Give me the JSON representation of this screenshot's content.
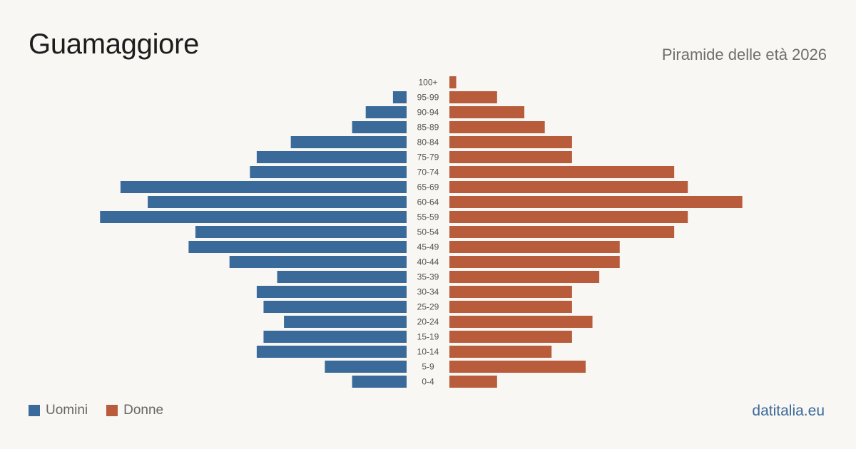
{
  "title": "Guamaggiore",
  "subtitle": "Piramide delle età 2026",
  "brand": "datitalia.eu",
  "colors": {
    "men": "#3a6a9a",
    "women": "#b85c3c",
    "brand": "#3a6a9a"
  },
  "legend": {
    "men_label": "Uomini",
    "women_label": "Donne"
  },
  "chart_data": {
    "type": "bar",
    "orientation": "horizontal-population-pyramid",
    "categories": [
      "100+",
      "95-99",
      "90-94",
      "85-89",
      "80-84",
      "75-79",
      "70-74",
      "65-69",
      "60-64",
      "55-59",
      "50-54",
      "45-49",
      "40-44",
      "35-39",
      "30-34",
      "25-29",
      "20-24",
      "15-19",
      "10-14",
      "5-9",
      "0-4"
    ],
    "series": [
      {
        "name": "Uomini",
        "values": [
          0,
          2,
          6,
          8,
          17,
          22,
          23,
          42,
          38,
          45,
          31,
          32,
          26,
          19,
          22,
          21,
          18,
          21,
          22,
          12,
          8
        ]
      },
      {
        "name": "Donne",
        "values": [
          1,
          7,
          11,
          14,
          18,
          18,
          33,
          35,
          43,
          35,
          33,
          25,
          25,
          22,
          18,
          18,
          21,
          18,
          15,
          20,
          7
        ]
      }
    ],
    "grid": false,
    "legend_position": "bottom-left"
  }
}
